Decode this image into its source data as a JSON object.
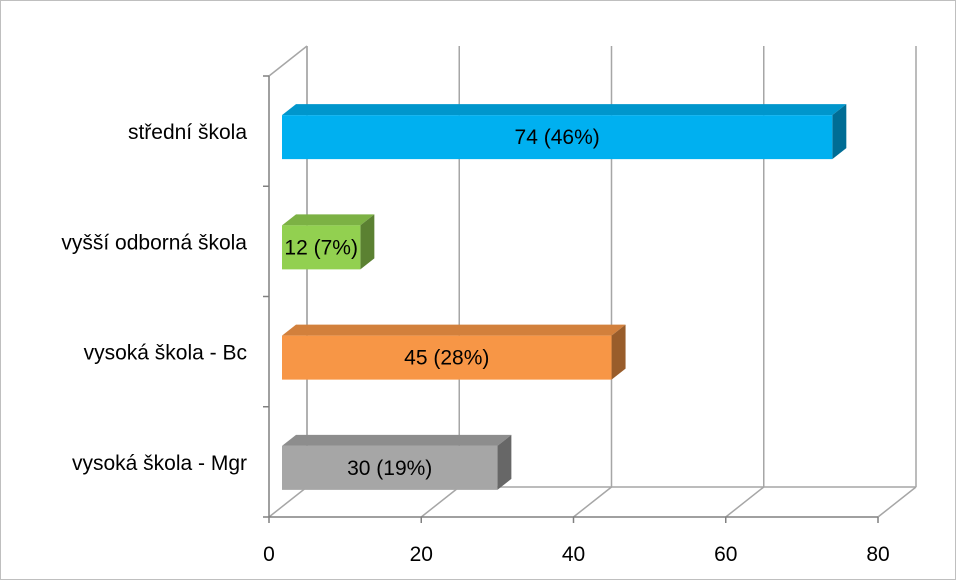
{
  "chart_data": {
    "type": "bar",
    "orientation": "horizontal",
    "three_d": true,
    "categories": [
      "střední škola",
      "vyšší odborná škola",
      "vysoká škola - Bc",
      "vysoká škola - Mgr"
    ],
    "values": [
      74,
      12,
      45,
      30
    ],
    "data_labels": [
      "74 (46%)",
      "12 (7%)",
      "45 (28%)",
      "30 (19%)"
    ],
    "colors": [
      "#00B0F0",
      "#92D050",
      "#F79646",
      "#A6A6A6"
    ],
    "xlim": [
      0,
      80
    ],
    "x_ticks": [
      0,
      20,
      40,
      60,
      80
    ],
    "x_tick_labels": [
      "0",
      "20",
      "40",
      "60",
      "80"
    ],
    "grid": true,
    "legend": "none"
  }
}
